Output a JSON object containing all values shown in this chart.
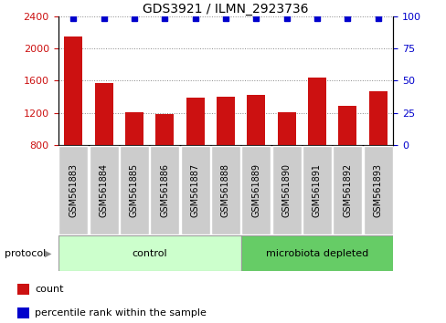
{
  "title": "GDS3921 / ILMN_2923736",
  "samples": [
    "GSM561883",
    "GSM561884",
    "GSM561885",
    "GSM561886",
    "GSM561887",
    "GSM561888",
    "GSM561889",
    "GSM561890",
    "GSM561891",
    "GSM561892",
    "GSM561893"
  ],
  "counts": [
    2150,
    1575,
    1205,
    1190,
    1390,
    1400,
    1420,
    1205,
    1640,
    1285,
    1470
  ],
  "percentile_ranks": [
    100,
    100,
    100,
    100,
    100,
    100,
    100,
    100,
    100,
    100,
    100
  ],
  "ylim_left": [
    800,
    2400
  ],
  "ylim_right": [
    0,
    100
  ],
  "yticks_left": [
    800,
    1200,
    1600,
    2000,
    2400
  ],
  "yticks_right": [
    0,
    25,
    50,
    75,
    100
  ],
  "bar_color": "#CC1111",
  "dot_color": "#0000CC",
  "control_samples": 6,
  "control_label": "control",
  "microbiota_label": "microbiota depleted",
  "control_color": "#CCFFCC",
  "microbiota_color": "#66CC66",
  "protocol_label": "protocol",
  "legend_count_label": "count",
  "legend_percentile_label": "percentile rank within the sample",
  "grid_color": "#888888",
  "title_fontsize": 10,
  "tick_fontsize": 8,
  "label_fontsize": 8,
  "sample_fontsize": 7,
  "proto_fontsize": 8
}
